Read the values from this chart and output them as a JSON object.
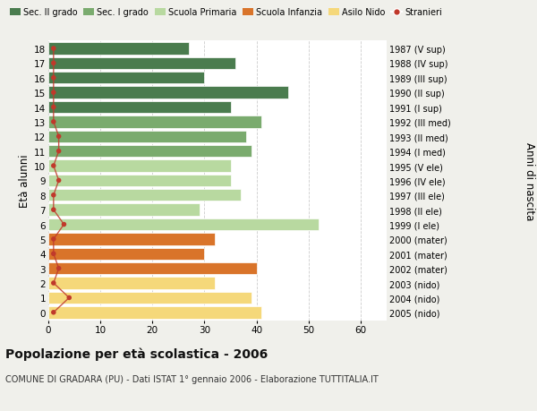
{
  "ages": [
    18,
    17,
    16,
    15,
    14,
    13,
    12,
    11,
    10,
    9,
    8,
    7,
    6,
    5,
    4,
    3,
    2,
    1,
    0
  ],
  "bar_values": [
    27,
    36,
    30,
    46,
    35,
    41,
    38,
    39,
    35,
    35,
    37,
    29,
    52,
    32,
    30,
    40,
    32,
    39,
    41
  ],
  "stranieri_values": [
    1,
    1,
    1,
    1,
    1,
    1,
    2,
    2,
    1,
    2,
    1,
    1,
    3,
    1,
    1,
    2,
    1,
    4,
    1
  ],
  "right_labels": [
    "1987 (V sup)",
    "1988 (IV sup)",
    "1989 (III sup)",
    "1990 (II sup)",
    "1991 (I sup)",
    "1992 (III med)",
    "1993 (II med)",
    "1994 (I med)",
    "1995 (V ele)",
    "1996 (IV ele)",
    "1997 (III ele)",
    "1998 (II ele)",
    "1999 (I ele)",
    "2000 (mater)",
    "2001 (mater)",
    "2002 (mater)",
    "2003 (nido)",
    "2004 (nido)",
    "2005 (nido)"
  ],
  "bar_colors": [
    "#4a7c4e",
    "#4a7c4e",
    "#4a7c4e",
    "#4a7c4e",
    "#4a7c4e",
    "#7aab6e",
    "#7aab6e",
    "#7aab6e",
    "#b8d9a0",
    "#b8d9a0",
    "#b8d9a0",
    "#b8d9a0",
    "#b8d9a0",
    "#d9742a",
    "#d9742a",
    "#d9742a",
    "#f5d87a",
    "#f5d87a",
    "#f5d87a"
  ],
  "legend_labels": [
    "Sec. II grado",
    "Sec. I grado",
    "Scuola Primaria",
    "Scuola Infanzia",
    "Asilo Nido",
    "Stranieri"
  ],
  "legend_colors": [
    "#4a7c4e",
    "#7aab6e",
    "#b8d9a0",
    "#d9742a",
    "#f5d87a",
    "#c0392b"
  ],
  "ylabel_left": "Età alunni",
  "ylabel_right": "Anni di nascita",
  "title": "Popolazione per età scolastica - 2006",
  "subtitle": "COMUNE DI GRADARA (PU) - Dati ISTAT 1° gennaio 2006 - Elaborazione TUTTITALIA.IT",
  "xlim": [
    0,
    65
  ],
  "xticks": [
    0,
    10,
    20,
    30,
    40,
    50,
    60
  ],
  "bg_color": "#f0f0eb",
  "plot_bg_color": "#ffffff",
  "stranieri_color": "#c0392b",
  "bar_height": 0.82
}
